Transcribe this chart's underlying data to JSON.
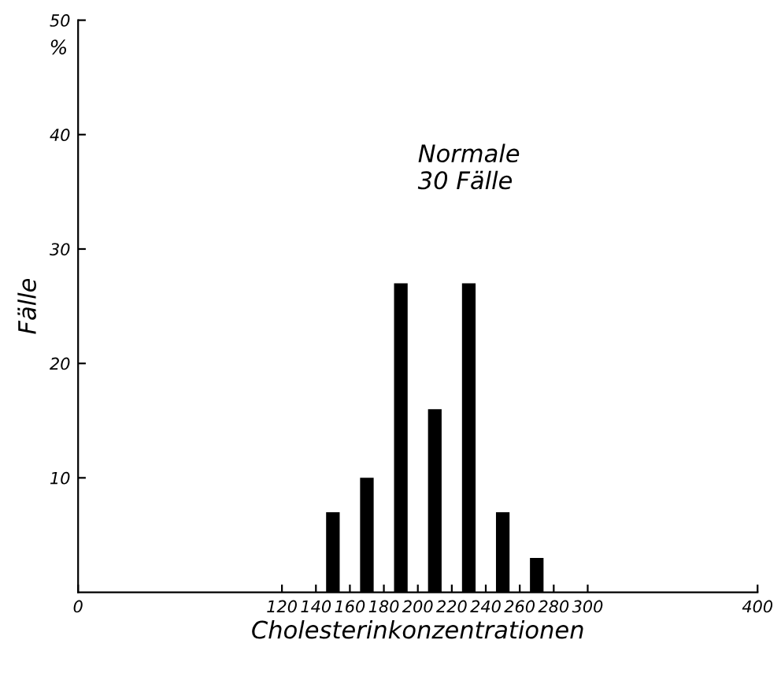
{
  "chart_data": {
    "type": "bar",
    "xlabel": "Cholesterinkonzentrationen",
    "ylabel": "Fälle",
    "x": [
      150,
      170,
      190,
      210,
      230,
      250,
      270
    ],
    "values": [
      7,
      10,
      27,
      16,
      27,
      7,
      3
    ],
    "color": "#000000",
    "xlim": [
      0,
      400
    ],
    "xticks": [
      0,
      120,
      140,
      160,
      180,
      200,
      220,
      240,
      260,
      280,
      300,
      400
    ],
    "ylim": [
      0,
      50
    ],
    "yticks": [
      10,
      20,
      30,
      40,
      50
    ],
    "annotations": [
      "%",
      "Normale\n30 Fälle"
    ],
    "grid": false,
    "legend": false
  }
}
